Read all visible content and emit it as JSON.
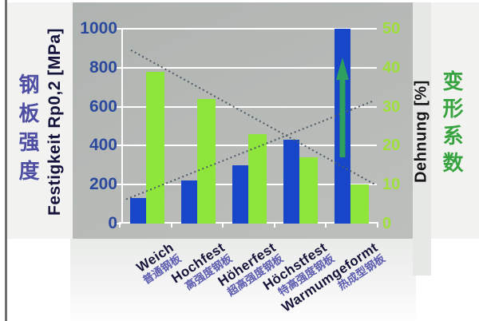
{
  "chart_data": {
    "type": "bar",
    "title": "",
    "categories": [
      {
        "de": "Weich",
        "zh": "普通钢板"
      },
      {
        "de": "Hochfest",
        "zh": "高强度钢板"
      },
      {
        "de": "Höherfest",
        "zh": "超高强度钢板"
      },
      {
        "de": "Höchstfest",
        "zh": "特高强度钢板"
      },
      {
        "de": "Warmumgeformt",
        "zh": "热成型钢板"
      }
    ],
    "series": [
      {
        "name": "strength",
        "axis": "left",
        "unit": "MPa",
        "color": "#1747c8",
        "values": [
          130,
          220,
          300,
          430,
          1000
        ]
      },
      {
        "name": "elongation",
        "axis": "right",
        "unit": "%",
        "color": "#8ee63a",
        "values": [
          39,
          32,
          23,
          17,
          10
        ]
      }
    ],
    "left_axis": {
      "label": "Festigkeit Rp0,2 [MPa]",
      "ticks": [
        1000,
        800,
        600,
        400,
        200,
        0
      ],
      "range": [
        0,
        1000
      ]
    },
    "right_axis": {
      "label": "Dehnung [%]",
      "ticks": [
        50,
        40,
        30,
        20,
        10,
        0
      ],
      "range": [
        0,
        50
      ]
    },
    "trend_lines": [
      {
        "name": "strength-trend",
        "style": "dashed",
        "axis": "left",
        "start": 125,
        "end": 630
      },
      {
        "name": "elongation-trend",
        "style": "dashed",
        "axis": "right",
        "start": 44.5,
        "end": 10
      }
    ],
    "annotations": [
      {
        "name": "up-arrow",
        "category_index": 4,
        "color": "#2f9f60"
      }
    ],
    "grid": true,
    "legend": false
  },
  "side_titles": {
    "left_cjk": "钢板强度",
    "right_cjk": "变形系数"
  },
  "colors": {
    "panel": "#b5b8b5",
    "grid": "#ffffff",
    "bar_blue": "#1747c8",
    "bar_green": "#8ee63a",
    "dashed_line": "#4b5c68",
    "arrow_green": "#2f9f60",
    "left_ticks": "#2b4a9e",
    "right_ticks": "#9fdf3a",
    "german_label": "#15153a",
    "chinese_label": "#5c5cb0",
    "left_title_cjk": "#4e4ea2",
    "right_title_cjk": "#36a33e"
  }
}
